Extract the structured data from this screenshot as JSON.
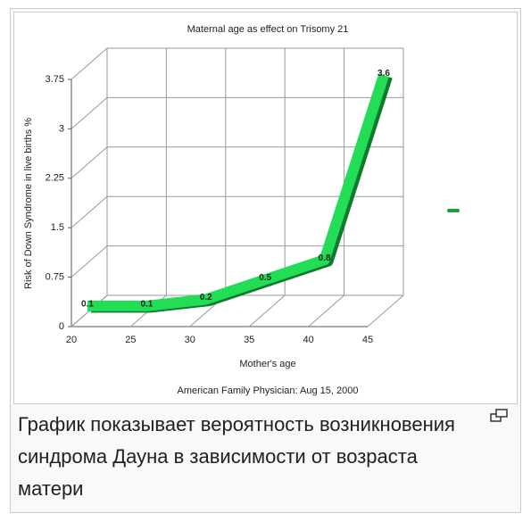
{
  "chart_data": {
    "type": "line",
    "title": "Maternal age as effect on Trisomy 21",
    "x_label": "Mother's age",
    "y_label": "Risk of Down Syndrome in live births %",
    "source": "American Family Physician: Aug 15, 2000",
    "x": [
      20,
      25,
      30,
      35,
      40,
      45
    ],
    "values": [
      0.1,
      0.1,
      0.2,
      0.5,
      0.8,
      3.6
    ],
    "color": "#22dd55",
    "xlim": [
      20,
      45
    ],
    "xticks": [
      20,
      25,
      30,
      35,
      40,
      45
    ],
    "ylim": [
      0,
      3.75
    ],
    "yticks": [
      0,
      0.75,
      1.5,
      2.25,
      3,
      3.75
    ],
    "grid": true
  },
  "caption": "График показывает вероятность возникновения синдрома Дауна в зависимости от возраста матери"
}
